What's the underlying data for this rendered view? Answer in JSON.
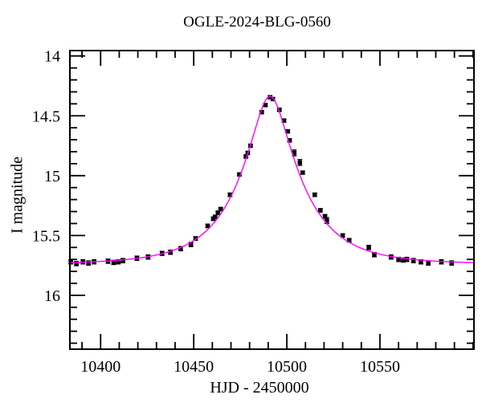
{
  "chart_data": {
    "type": "scatter",
    "title": "OGLE-2024-BLG-0560",
    "xlabel": "HJD - 2450000",
    "ylabel": "I magnitude",
    "xlim": [
      10383.5,
      10600.5
    ],
    "ylim": [
      13.955,
      16.45
    ],
    "y_inverted": true,
    "grid": false,
    "x_major_ticks": [
      {
        "value": 10400,
        "label": "10400"
      },
      {
        "value": 10450,
        "label": "10450"
      },
      {
        "value": 10500,
        "label": "10500"
      },
      {
        "value": 10550,
        "label": "10550"
      }
    ],
    "x_minor_step": 10,
    "y_major_ticks": [
      {
        "value": 14,
        "label": "14"
      },
      {
        "value": 14.5,
        "label": "14.5"
      },
      {
        "value": 15,
        "label": "15"
      },
      {
        "value": 15.5,
        "label": "15.5"
      },
      {
        "value": 16,
        "label": "16"
      }
    ],
    "y_minor_step": 0.1,
    "model_curve": {
      "kind": "paczynski-microlensing",
      "t0": 10491,
      "tE": 33,
      "u0": 0.283,
      "I_baseline": 15.74,
      "peak_mag": 14.34,
      "color": "#ff00ff"
    },
    "series": [
      {
        "name": "OGLE I-band photometry",
        "marker": "filled-square",
        "color": "#000000",
        "points_hjd_mag_err": [
          [
            10384.0,
            15.72,
            0.018
          ],
          [
            10387.0,
            15.735,
            0.018
          ],
          [
            10390.5,
            15.72,
            0.018
          ],
          [
            10393.5,
            15.73,
            0.018
          ],
          [
            10396.5,
            15.72,
            0.018
          ],
          [
            10404.0,
            15.715,
            0.018
          ],
          [
            10407.0,
            15.725,
            0.018
          ],
          [
            10409.5,
            15.72,
            0.018
          ],
          [
            10412.0,
            15.71,
            0.018
          ],
          [
            10419.5,
            15.69,
            0.018
          ],
          [
            10425.5,
            15.68,
            0.018
          ],
          [
            10433.0,
            15.65,
            0.018
          ],
          [
            10437.5,
            15.64,
            0.018
          ],
          [
            10443.0,
            15.61,
            0.018
          ],
          [
            10448.5,
            15.575,
            0.018
          ],
          [
            10451.0,
            15.525,
            0.015
          ],
          [
            10457.5,
            15.42,
            0.015
          ],
          [
            10460.5,
            15.36,
            0.015
          ],
          [
            10461.5,
            15.345,
            0.015
          ],
          [
            10463.0,
            15.31,
            0.015
          ],
          [
            10464.5,
            15.28,
            0.015
          ],
          [
            10469.5,
            15.16,
            0.015
          ],
          [
            10474.5,
            14.99,
            0.012
          ],
          [
            10478.0,
            14.84,
            0.012
          ],
          [
            10479.0,
            14.81,
            0.012
          ],
          [
            10480.5,
            14.75,
            0.012
          ],
          [
            10486.5,
            14.47,
            0.012
          ],
          [
            10488.5,
            14.41,
            0.012
          ],
          [
            10491.0,
            14.345,
            0.012
          ],
          [
            10492.5,
            14.36,
            0.012
          ],
          [
            10496.0,
            14.45,
            0.012
          ],
          [
            10498.5,
            14.54,
            0.012
          ],
          [
            10500.5,
            14.63,
            0.012
          ],
          [
            10501.5,
            14.705,
            0.012
          ],
          [
            10504.0,
            14.81,
            0.025
          ],
          [
            10507.0,
            14.89,
            0.025
          ],
          [
            10508.5,
            14.975,
            0.012
          ],
          [
            10515.0,
            15.16,
            0.015
          ],
          [
            10518.0,
            15.29,
            0.015
          ],
          [
            10520.5,
            15.34,
            0.015
          ],
          [
            10521.5,
            15.375,
            0.025
          ],
          [
            10530.0,
            15.5,
            0.015
          ],
          [
            10533.5,
            15.54,
            0.015
          ],
          [
            10544.0,
            15.6,
            0.018
          ],
          [
            10547.0,
            15.66,
            0.018
          ],
          [
            10556.0,
            15.68,
            0.018
          ],
          [
            10560.0,
            15.7,
            0.018
          ],
          [
            10562.5,
            15.705,
            0.018
          ],
          [
            10564.5,
            15.7,
            0.018
          ],
          [
            10568.0,
            15.71,
            0.018
          ],
          [
            10572.0,
            15.72,
            0.018
          ],
          [
            10576.0,
            15.73,
            0.018
          ],
          [
            10583.0,
            15.72,
            0.018
          ],
          [
            10588.5,
            15.73,
            0.018
          ]
        ]
      }
    ],
    "colors": {
      "axis": "#000000",
      "marker": "#000000",
      "curve": "#ff00ff",
      "background": "#ffffff"
    }
  }
}
